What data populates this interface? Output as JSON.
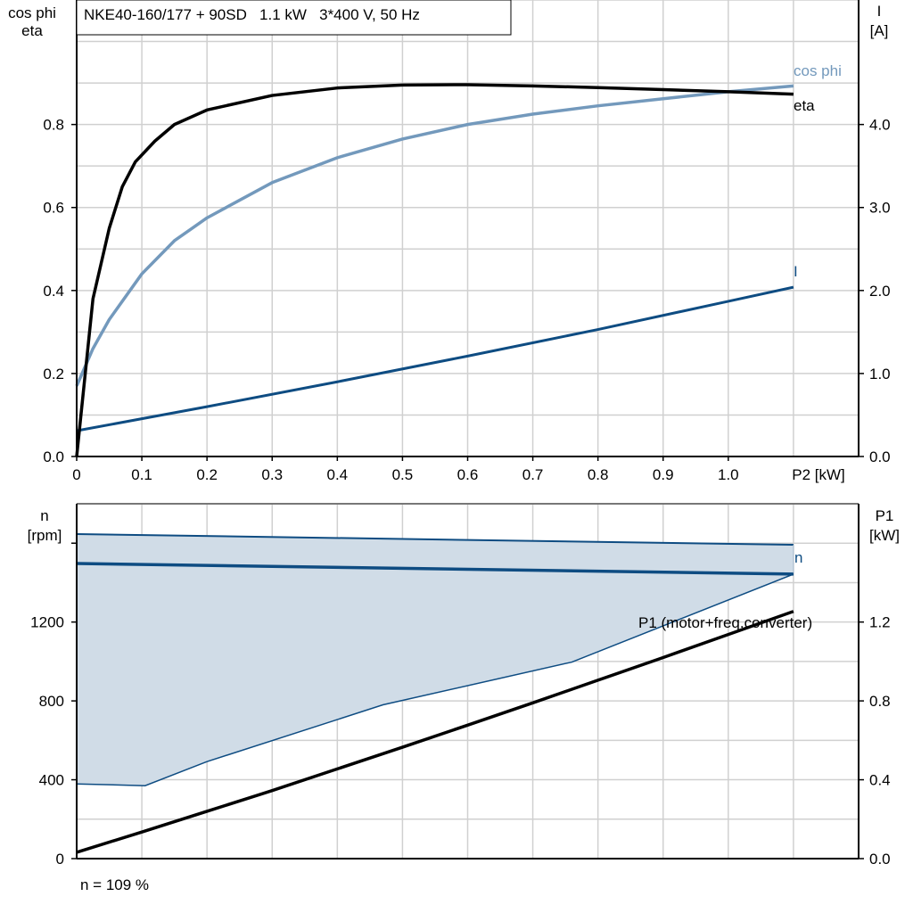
{
  "chart_data": [
    {
      "type": "line",
      "title": "NKE40-160/177 + 90SD   1.1 kW   3*400 V, 50 Hz",
      "xlabel": "P2 [kW]",
      "ylabel_left": [
        "cos phi",
        "eta"
      ],
      "ylabel_right": [
        "I",
        "[A]"
      ],
      "xlim": [
        0,
        1.2
      ],
      "ylim_left": [
        0,
        1.1
      ],
      "ylim_right": [
        0,
        5.5
      ],
      "grid": true,
      "x_ticks": [
        "0",
        "0.1",
        "0.2",
        "0.3",
        "0.4",
        "0.5",
        "0.6",
        "0.7",
        "0.8",
        "0.9",
        "1.0"
      ],
      "y_left_ticks": [
        "0.0",
        "0.2",
        "0.4",
        "0.6",
        "0.8"
      ],
      "y_right_ticks": [
        "0.0",
        "1.0",
        "2.0",
        "3.0",
        "4.0"
      ],
      "series": [
        {
          "name": "eta",
          "axis": "left",
          "color": "#000000",
          "x": [
            0,
            0.025,
            0.05,
            0.07,
            0.09,
            0.12,
            0.15,
            0.2,
            0.3,
            0.4,
            0.5,
            0.6,
            0.7,
            0.8,
            0.9,
            1.0,
            1.1
          ],
          "y": [
            0,
            0.38,
            0.55,
            0.65,
            0.71,
            0.76,
            0.8,
            0.835,
            0.87,
            0.888,
            0.895,
            0.896,
            0.893,
            0.889,
            0.884,
            0.879,
            0.873
          ]
        },
        {
          "name": "cos phi",
          "axis": "left",
          "color": "#7399BC",
          "x": [
            0,
            0.025,
            0.05,
            0.1,
            0.15,
            0.2,
            0.3,
            0.4,
            0.5,
            0.6,
            0.7,
            0.8,
            0.9,
            1.0,
            1.1
          ],
          "y": [
            0.17,
            0.26,
            0.33,
            0.44,
            0.52,
            0.575,
            0.66,
            0.72,
            0.765,
            0.8,
            0.825,
            0.845,
            0.862,
            0.879,
            0.893
          ]
        },
        {
          "name": "I",
          "axis": "right",
          "color": "#0E4C82",
          "x": [
            0,
            0.2,
            0.4,
            0.6,
            0.8,
            1.0,
            1.1
          ],
          "y": [
            0.31,
            0.6,
            0.9,
            1.21,
            1.53,
            1.87,
            2.04
          ]
        }
      ]
    },
    {
      "type": "line",
      "ylabel_left": [
        "n",
        "[rpm]"
      ],
      "ylabel_right": [
        "P1",
        "[kW]"
      ],
      "xlim": [
        0,
        1.2
      ],
      "ylim_left": [
        0,
        1800
      ],
      "ylim_right": [
        0,
        1.8
      ],
      "grid": true,
      "y_left_ticks": [
        "0",
        "400",
        "800",
        "1200"
      ],
      "y_right_ticks": [
        "0.0",
        "0.4",
        "0.8",
        "1.2"
      ],
      "footer": "n = 109 %",
      "range_band": {
        "fill": "#D0DCE7",
        "color": "#0E4C82",
        "upper": {
          "x": [
            0,
            1.1
          ],
          "y": [
            1646,
            1592
          ]
        },
        "lower": {
          "x": [
            0,
            0.105,
            0.2,
            0.47,
            0.76,
            1.1
          ],
          "y": [
            379,
            370,
            492,
            780,
            997,
            1443
          ]
        }
      },
      "series": [
        {
          "name": "n",
          "axis": "left",
          "color": "#0E4C82",
          "x": [
            0,
            1.1
          ],
          "y": [
            1497,
            1443
          ]
        },
        {
          "name": "P1 (motor+freq.converter)",
          "axis": "right",
          "color": "#000000",
          "x": [
            0,
            0.1,
            0.2,
            0.3,
            0.4,
            0.5,
            0.6,
            0.7,
            0.8,
            0.9,
            1.0,
            1.1
          ],
          "y": [
            0.032,
            0.135,
            0.24,
            0.345,
            0.455,
            0.565,
            0.677,
            0.79,
            0.905,
            1.02,
            1.137,
            1.254
          ]
        }
      ]
    }
  ]
}
